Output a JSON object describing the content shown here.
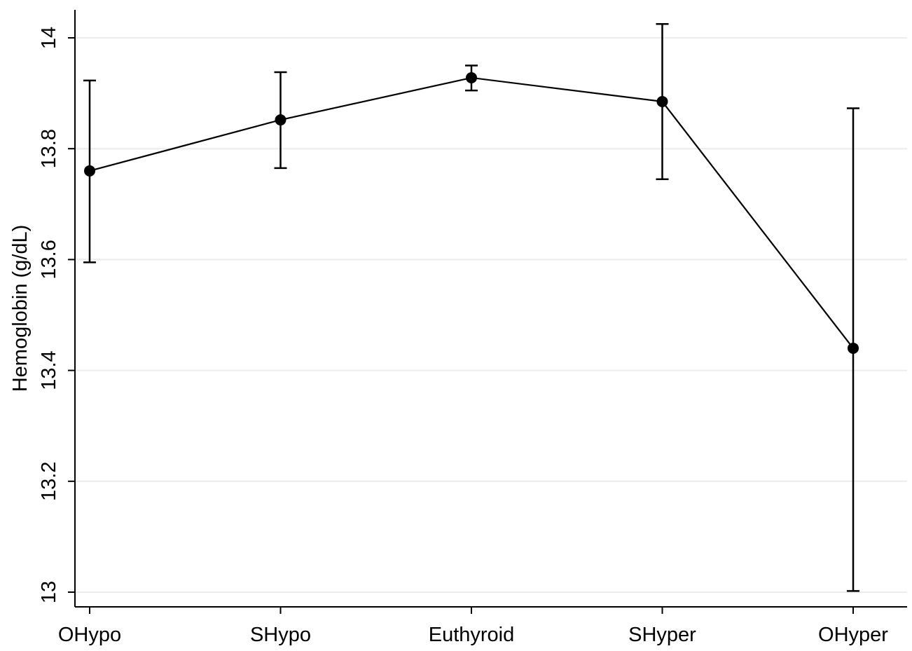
{
  "chart_data": {
    "type": "line",
    "title": "",
    "xlabel": "",
    "ylabel": "Hemoglobin (g/dL)",
    "categories": [
      "OHypo",
      "SHypo",
      "Euthyroid",
      "SHyper",
      "OHyper"
    ],
    "series": [
      {
        "values": [
          13.76,
          13.852,
          13.928,
          13.885,
          13.44
        ],
        "ci_lower": [
          13.595,
          13.765,
          13.905,
          13.745,
          13.002
        ],
        "ci_upper": [
          13.923,
          13.938,
          13.95,
          14.025,
          13.873
        ]
      }
    ],
    "ylim": [
      13.0,
      14.0
    ],
    "yticks": [
      13,
      13.2,
      13.4,
      13.6,
      13.8,
      14
    ],
    "ytick_labels": [
      "13",
      "13.2",
      "13.4",
      "13.6",
      "13.8",
      "14"
    ],
    "grid": true,
    "colors": {
      "line": "#000000",
      "grid": "#e8eef0",
      "axis": "#000000"
    }
  }
}
